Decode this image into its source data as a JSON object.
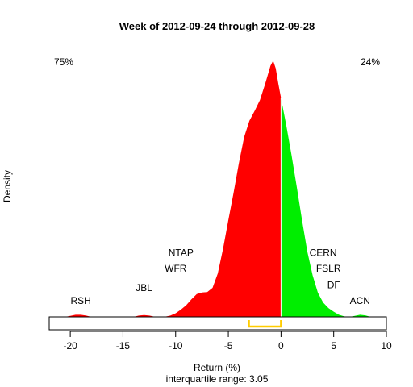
{
  "chart_data": {
    "type": "area",
    "title": "Week of 2012-09-24 through 2012-09-28",
    "xlabel": "Return (%)",
    "subtitle": "interquartile range: 3.05",
    "ylabel": "Density",
    "xlim": [
      -22,
      10
    ],
    "x_ticks": [
      -20,
      -15,
      -10,
      -5,
      0,
      5,
      10
    ],
    "tick_labels": [
      "-20",
      "-15",
      "-10",
      "-5",
      "0",
      "5",
      "10"
    ],
    "split_at": 0,
    "left_percent_label": "75%",
    "right_percent_label": "24%",
    "colors": {
      "negative": "#ff0000",
      "positive": "#00ee00",
      "iqr": "#ffcc00",
      "baseline": "#bebebe"
    },
    "interquartile_range": {
      "value": 3.05,
      "from": -3.05,
      "to": 0.0
    },
    "density_curve": [
      [
        -21,
        0.0
      ],
      [
        -20.5,
        0.0
      ],
      [
        -20,
        0.004
      ],
      [
        -19.5,
        0.008
      ],
      [
        -19,
        0.008
      ],
      [
        -18.5,
        0.005
      ],
      [
        -18,
        0.0
      ],
      [
        -15,
        0.0
      ],
      [
        -14,
        0.0
      ],
      [
        -13.5,
        0.005
      ],
      [
        -13,
        0.007
      ],
      [
        -12.5,
        0.005
      ],
      [
        -12,
        0.001
      ],
      [
        -11,
        0.001
      ],
      [
        -10.5,
        0.005
      ],
      [
        -10,
        0.014
      ],
      [
        -9.5,
        0.028
      ],
      [
        -9,
        0.045
      ],
      [
        -8.5,
        0.068
      ],
      [
        -8,
        0.088
      ],
      [
        -7.5,
        0.094
      ],
      [
        -7,
        0.096
      ],
      [
        -6.5,
        0.112
      ],
      [
        -6,
        0.168
      ],
      [
        -5.5,
        0.263
      ],
      [
        -5,
        0.374
      ],
      [
        -4.5,
        0.48
      ],
      [
        -4,
        0.593
      ],
      [
        -3.5,
        0.695
      ],
      [
        -3,
        0.758
      ],
      [
        -2.5,
        0.796
      ],
      [
        -2,
        0.838
      ],
      [
        -1.5,
        0.901
      ],
      [
        -1,
        0.97
      ],
      [
        -0.75,
        0.99
      ],
      [
        -0.5,
        0.96
      ],
      [
        -0.25,
        0.9
      ],
      [
        0,
        0.845
      ],
      [
        0.5,
        0.74
      ],
      [
        1,
        0.625
      ],
      [
        1.5,
        0.5
      ],
      [
        2,
        0.372
      ],
      [
        2.5,
        0.252
      ],
      [
        3,
        0.16
      ],
      [
        3.5,
        0.093
      ],
      [
        4,
        0.055
      ],
      [
        4.5,
        0.034
      ],
      [
        5,
        0.02
      ],
      [
        5.5,
        0.008
      ],
      [
        6,
        0.002
      ],
      [
        6.5,
        0.0
      ],
      [
        7,
        0.004
      ],
      [
        7.5,
        0.008
      ],
      [
        8,
        0.006
      ],
      [
        8.5,
        0.0
      ],
      [
        9,
        0.0
      ]
    ],
    "annotations": [
      {
        "text": "RSH",
        "x": -19,
        "level": 0.05
      },
      {
        "text": "JBL",
        "x": -13,
        "level": 0.1
      },
      {
        "text": "WFR",
        "x": -10,
        "level": 0.175
      },
      {
        "text": "NTAP",
        "x": -9.5,
        "level": 0.235
      },
      {
        "text": "CERN",
        "x": 4,
        "level": 0.235
      },
      {
        "text": "FSLR",
        "x": 4.5,
        "level": 0.175
      },
      {
        "text": "DF",
        "x": 5,
        "level": 0.11
      },
      {
        "text": "ACN",
        "x": 7.5,
        "level": 0.05
      }
    ]
  }
}
